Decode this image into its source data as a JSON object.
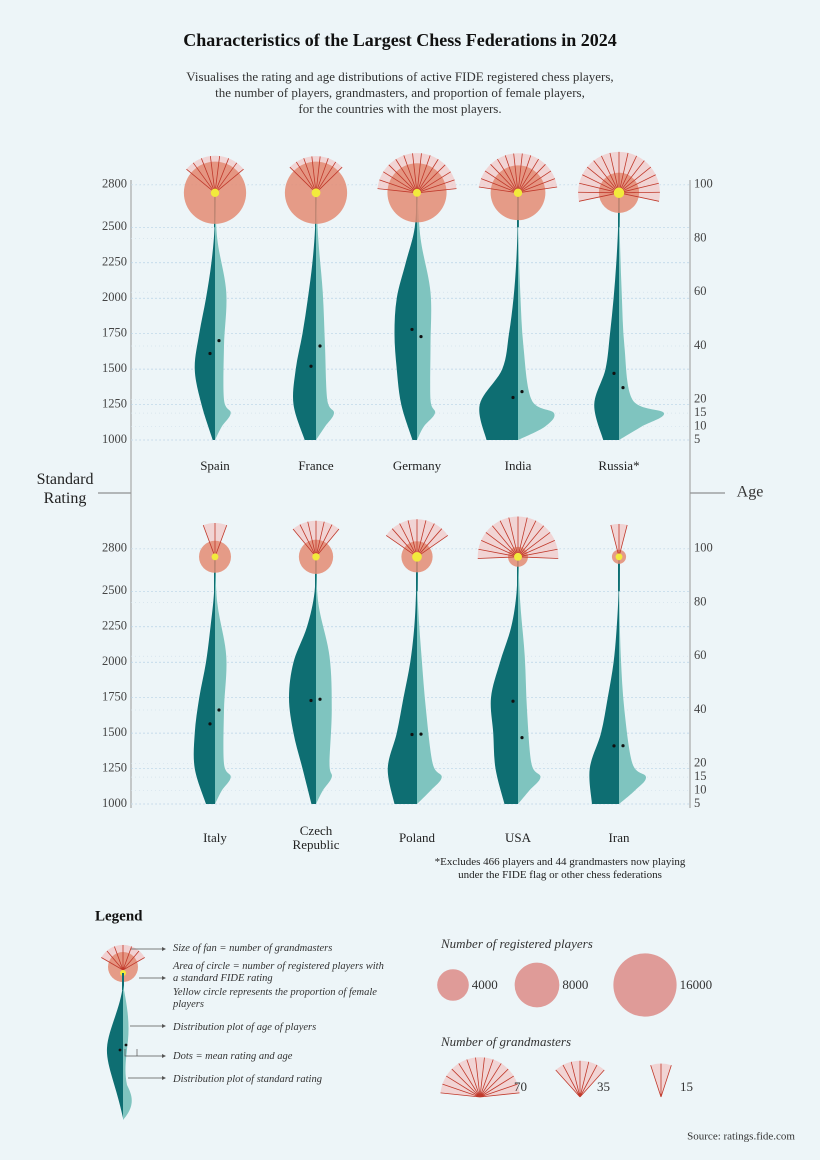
{
  "chart_data": {
    "type": "violin",
    "title": "Characteristics of the Largest Chess Federations in 2024",
    "subtitle": [
      "Visualises the rating and age distributions of active FIDE registered chess players,",
      "the number of players, grandmasters, and proportion of female players,",
      "for the countries with the most players."
    ],
    "ylabel": "Standard Rating",
    "y2label": "Age",
    "ylim": [
      1000,
      2800
    ],
    "yticks": [
      1000,
      1250,
      1500,
      1750,
      2000,
      2250,
      2500,
      2800
    ],
    "y2lim": [
      5,
      100
    ],
    "y2ticks": [
      5,
      10,
      15,
      20,
      40,
      60,
      80,
      100
    ],
    "countries": [
      {
        "name": "Spain",
        "players": 15500,
        "grandmasters": 42,
        "female_percent": 9,
        "mean_rating": 1610,
        "mean_age": 42,
        "rating_density": [
          0.05,
          0.3,
          0.45,
          0.35,
          0.2,
          0.08,
          0.01,
          0
        ],
        "age_density": [
          0,
          0.15,
          0.35,
          0.2,
          0.2,
          0.25,
          0.05,
          0
        ]
      },
      {
        "name": "France",
        "players": 15500,
        "grandmasters": 38,
        "female_percent": 10,
        "mean_rating": 1520,
        "mean_age": 40,
        "rating_density": [
          0.25,
          0.5,
          0.45,
          0.3,
          0.18,
          0.08,
          0.02,
          0
        ],
        "age_density": [
          0,
          0.2,
          0.4,
          0.25,
          0.2,
          0.15,
          0.05,
          0
        ]
      },
      {
        "name": "Germany",
        "players": 14000,
        "grandmasters": 70,
        "female_percent": 8,
        "mean_rating": 1780,
        "mean_age": 43.5,
        "rating_density": [
          0.1,
          0.35,
          0.45,
          0.5,
          0.45,
          0.25,
          0.05,
          0
        ],
        "age_density": [
          0,
          0.15,
          0.4,
          0.3,
          0.3,
          0.3,
          0.08,
          0
        ]
      },
      {
        "name": "India",
        "players": 12000,
        "grandmasters": 68,
        "female_percent": 9,
        "mean_rating": 1300,
        "mean_age": 23,
        "rating_density": [
          0.7,
          0.85,
          0.35,
          0.2,
          0.1,
          0.04,
          0.01,
          0
        ],
        "age_density": [
          0,
          0.6,
          0.8,
          0.3,
          0.12,
          0.05,
          0.01,
          0
        ]
      },
      {
        "name": "Russia*",
        "players": 6500,
        "grandmasters": 85,
        "female_percent": 14,
        "mean_rating": 1470,
        "mean_age": 24.5,
        "rating_density": [
          0.35,
          0.55,
          0.3,
          0.2,
          0.12,
          0.06,
          0.02,
          0
        ],
        "age_density": [
          0,
          0.5,
          1.0,
          0.3,
          0.12,
          0.06,
          0.02,
          0
        ]
      },
      {
        "name": "Italy",
        "players": 4100,
        "grandmasters": 17,
        "female_percent": 6,
        "mean_rating": 1565,
        "mean_age": 40,
        "rating_density": [
          0.2,
          0.45,
          0.45,
          0.35,
          0.2,
          0.1,
          0.02,
          0
        ],
        "age_density": [
          0,
          0.15,
          0.35,
          0.2,
          0.2,
          0.25,
          0.05,
          0
        ]
      },
      {
        "name": "Czech Republic",
        "players": 4700,
        "grandmasters": 33,
        "female_percent": 7,
        "mean_rating": 1730,
        "mean_age": 44,
        "rating_density": [
          0.1,
          0.3,
          0.5,
          0.6,
          0.5,
          0.2,
          0.03,
          0
        ],
        "age_density": [
          0,
          0.15,
          0.35,
          0.3,
          0.35,
          0.3,
          0.05,
          0
        ]
      },
      {
        "name": "Poland",
        "players": 3900,
        "grandmasters": 46,
        "female_percent": 12,
        "mean_rating": 1490,
        "mean_age": 31,
        "rating_density": [
          0.5,
          0.65,
          0.45,
          0.3,
          0.15,
          0.06,
          0.02,
          0
        ],
        "age_density": [
          0,
          0.3,
          0.55,
          0.35,
          0.2,
          0.1,
          0.02,
          0
        ]
      },
      {
        "name": "USA",
        "players": 1600,
        "grandmasters": 77,
        "female_percent": 8,
        "mean_rating": 1725,
        "mean_age": 29.7,
        "rating_density": [
          0.3,
          0.5,
          0.55,
          0.6,
          0.4,
          0.15,
          0.03,
          0
        ],
        "age_density": [
          0,
          0.25,
          0.5,
          0.3,
          0.2,
          0.15,
          0.05,
          0
        ]
      },
      {
        "name": "Iran",
        "players": 800,
        "grandmasters": 12,
        "female_percent": 6,
        "mean_rating": 1410,
        "mean_age": 26.7,
        "rating_density": [
          0.6,
          0.65,
          0.4,
          0.25,
          0.12,
          0.05,
          0.01,
          0
        ],
        "age_density": [
          0,
          0.35,
          0.6,
          0.3,
          0.12,
          0.04,
          0.01,
          0
        ]
      }
    ],
    "footnote": "*Excludes 466 players and 44 grandmasters now playing under the FIDE flag or other chess federations",
    "legend": {
      "title": "Legend",
      "notes": [
        "Size of fan = number of grandmasters",
        "Area of circle = number of registered players with a standard FIDE rating",
        "Yellow circle represents the proportion of female players",
        "Distribution plot of age of players",
        "Dots = mean rating and age",
        "Distribution plot of standard rating"
      ],
      "players_title": "Number of registered players",
      "players_sizes": [
        4000,
        8000,
        16000
      ],
      "grandmasters_title": "Number of grandmasters",
      "grandmasters_sizes": [
        70,
        35,
        15
      ]
    },
    "source": "Source: ratings.fide.com"
  }
}
